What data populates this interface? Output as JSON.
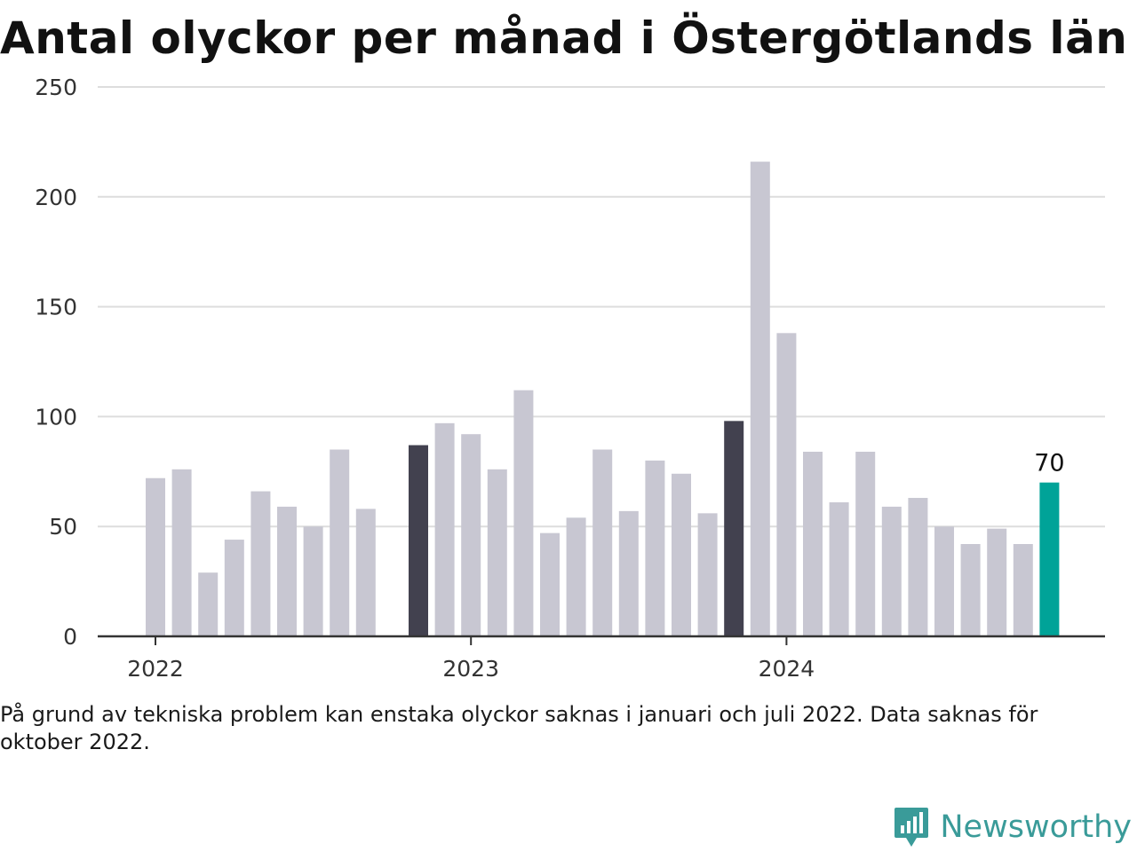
{
  "title": "Antal olyckor per månad i Östergötlands län",
  "note": "På grund av tekniska problem kan enstaka olyckor saknas i januari och juli 2022. Data saknas för oktober 2022.",
  "brand": {
    "name": "Newsworthy",
    "icon": "chart-speech-bubble-icon"
  },
  "colors": {
    "default_bar": "#c8c7d2",
    "highlight_bar": "#42414f",
    "latest_bar": "#00a398",
    "grid": "#dddddd",
    "axis": "#333333"
  },
  "chart_data": {
    "type": "bar",
    "title": "Antal olyckor per månad i Östergötlands län",
    "xlabel": "",
    "ylabel": "",
    "ylim": [
      0,
      250
    ],
    "yticks": [
      0,
      50,
      100,
      150,
      200,
      250
    ],
    "year_ticks": [
      {
        "label": "2022",
        "month": "2022-01"
      },
      {
        "label": "2023",
        "month": "2023-01"
      },
      {
        "label": "2024",
        "month": "2024-01"
      }
    ],
    "grid": true,
    "months": [
      "2022-01",
      "2022-02",
      "2022-03",
      "2022-04",
      "2022-05",
      "2022-06",
      "2022-07",
      "2022-08",
      "2022-09",
      "2022-10",
      "2022-11",
      "2022-12",
      "2023-01",
      "2023-02",
      "2023-03",
      "2023-04",
      "2023-05",
      "2023-06",
      "2023-07",
      "2023-08",
      "2023-09",
      "2023-10",
      "2023-11",
      "2023-12",
      "2024-01",
      "2024-02",
      "2024-03",
      "2024-04",
      "2024-05",
      "2024-06",
      "2024-07",
      "2024-08",
      "2024-09",
      "2024-10",
      "2024-11",
      "2024-12"
    ],
    "values": [
      72,
      76,
      29,
      44,
      66,
      59,
      50,
      85,
      58,
      null,
      87,
      97,
      92,
      76,
      112,
      47,
      54,
      85,
      57,
      80,
      74,
      56,
      98,
      216,
      138,
      84,
      61,
      84,
      59,
      63,
      50,
      42,
      49,
      42,
      70,
      null
    ],
    "highlight_months": [
      "2022-11",
      "2023-11"
    ],
    "latest_month": "2024-11",
    "latest_label": "70"
  }
}
